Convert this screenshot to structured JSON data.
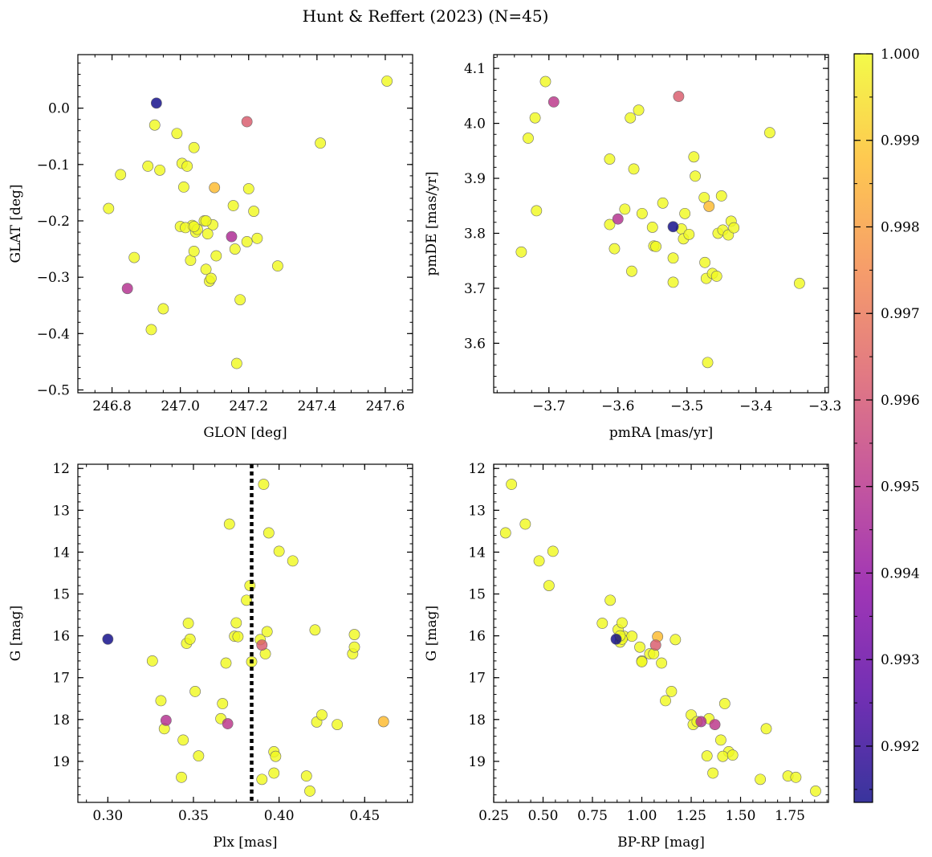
{
  "figure_title": "Hunt & Reffert (2023) (N=45)",
  "colors": {
    "cmap": [
      "#0d0887",
      "#5302a3",
      "#8b0aa5",
      "#b83289",
      "#db5c68",
      "#f48849",
      "#febc2a",
      "#f0f921"
    ],
    "edge": "#6b6b6b"
  },
  "colorbar": {
    "min": 0.99135,
    "max": 1.0,
    "ticks": [
      0.992,
      0.993,
      0.994,
      0.995,
      0.996,
      0.997,
      0.998,
      0.999,
      1.0
    ]
  },
  "chart_data": [
    {
      "type": "scatter",
      "xlabel": "GLON [deg]",
      "ylabel": "GLAT [deg]",
      "xlim": [
        246.7,
        247.68
      ],
      "ylim": [
        -0.505,
        0.095
      ],
      "xticks": [
        246.8,
        247.0,
        247.2,
        247.4,
        247.6
      ],
      "yticks": [
        -0.5,
        -0.4,
        -0.3,
        -0.2,
        -0.1,
        0.0
      ],
      "x": [
        246.79,
        246.825,
        246.865,
        246.845,
        246.905,
        246.915,
        246.925,
        246.94,
        246.95,
        246.99,
        247.005,
        247.01,
        247.02,
        247.03,
        247.04,
        247.035,
        247.045,
        247.04,
        247.0,
        247.015,
        247.07,
        247.075,
        247.085,
        247.09,
        247.095,
        247.08,
        247.105,
        247.155,
        247.16,
        247.165,
        247.175,
        247.195,
        247.2,
        247.215,
        247.225,
        247.285,
        247.41,
        247.605,
        246.93,
        247.195,
        247.15,
        247.1,
        247.075,
        247.05,
        247.04
      ],
      "y": [
        -0.178,
        -0.118,
        -0.265,
        -0.32,
        -0.103,
        -0.393,
        -0.03,
        -0.11,
        -0.356,
        -0.045,
        -0.098,
        -0.14,
        -0.103,
        -0.27,
        -0.07,
        -0.208,
        -0.22,
        -0.254,
        -0.21,
        -0.212,
        -0.2,
        -0.286,
        -0.307,
        -0.302,
        -0.207,
        -0.223,
        -0.262,
        -0.173,
        -0.25,
        -0.453,
        -0.34,
        -0.237,
        -0.143,
        -0.183,
        -0.231,
        -0.28,
        -0.062,
        0.048,
        0.009,
        -0.024,
        -0.228,
        -0.141,
        -0.2,
        -0.215,
        -0.21
      ],
      "prob": [
        1,
        1,
        1,
        0.9949,
        1,
        1,
        1,
        1,
        1,
        1,
        1,
        1,
        1,
        1,
        1,
        1,
        1,
        1,
        1,
        1,
        1,
        1,
        1,
        1,
        1,
        1,
        1,
        1,
        1,
        1,
        1,
        1,
        1,
        1,
        1,
        1,
        1,
        1,
        0.99135,
        0.9962,
        0.9947,
        0.9987,
        1,
        1,
        1
      ]
    },
    {
      "type": "scatter",
      "xlabel": "pmRA [mas/yr]",
      "ylabel": "pmDE [mas/yr]",
      "xlim": [
        -3.78,
        -3.295
      ],
      "ylim": [
        3.51,
        4.125
      ],
      "xticks": [
        -3.7,
        -3.6,
        -3.5,
        -3.4,
        -3.3
      ],
      "yticks": [
        3.6,
        3.7,
        3.8,
        3.9,
        4.0,
        4.1
      ],
      "x": [
        -3.74,
        -3.73,
        -3.72,
        -3.705,
        -3.718,
        -3.612,
        -3.605,
        -3.59,
        -3.582,
        -3.577,
        -3.57,
        -3.565,
        -3.55,
        -3.548,
        -3.545,
        -3.535,
        -3.52,
        -3.52,
        -3.508,
        -3.505,
        -3.503,
        -3.497,
        -3.49,
        -3.488,
        -3.475,
        -3.474,
        -3.472,
        -3.47,
        -3.463,
        -3.457,
        -3.455,
        -3.45,
        -3.448,
        -3.44,
        -3.436,
        -3.432,
        -3.38,
        -3.337,
        -3.612,
        -3.58,
        -3.52,
        -3.693,
        -3.512,
        -3.6,
        -3.468
      ],
      "y": [
        3.766,
        3.973,
        4.01,
        4.076,
        3.841,
        3.935,
        3.772,
        3.844,
        4.01,
        3.917,
        4.024,
        3.836,
        3.811,
        3.777,
        3.776,
        3.855,
        3.755,
        3.711,
        3.808,
        3.79,
        3.836,
        3.798,
        3.939,
        3.904,
        3.865,
        3.747,
        3.718,
        3.565,
        3.727,
        3.722,
        3.8,
        3.868,
        3.806,
        3.797,
        3.822,
        3.81,
        3.983,
        3.709,
        3.816,
        3.731,
        3.812,
        4.039,
        4.049,
        3.826,
        3.849
      ],
      "prob": [
        1,
        1,
        1,
        1,
        1,
        1,
        1,
        1,
        1,
        1,
        1,
        1,
        1,
        1,
        1,
        1,
        1,
        1,
        1,
        1,
        1,
        1,
        1,
        1,
        1,
        1,
        1,
        1,
        1,
        1,
        1,
        1,
        1,
        1,
        1,
        1,
        1,
        1,
        1,
        1,
        0.99135,
        0.9951,
        0.9962,
        0.9949,
        0.9987
      ]
    },
    {
      "type": "scatter",
      "xlabel": "Plx [mas]",
      "ylabel": "G [mag]",
      "xlim": [
        0.2825,
        0.478
      ],
      "ylim": [
        19.98,
        11.9
      ],
      "xticks": [
        0.3,
        0.35,
        0.4,
        0.45
      ],
      "yticks": [
        12,
        13,
        14,
        15,
        16,
        17,
        18,
        19
      ],
      "vline": 0.384,
      "x": [
        0.326,
        0.331,
        0.333,
        0.344,
        0.346,
        0.347,
        0.348,
        0.351,
        0.353,
        0.343,
        0.367,
        0.366,
        0.369,
        0.371,
        0.374,
        0.375,
        0.376,
        0.381,
        0.383,
        0.384,
        0.389,
        0.391,
        0.39,
        0.392,
        0.393,
        0.394,
        0.397,
        0.398,
        0.397,
        0.4,
        0.408,
        0.416,
        0.418,
        0.421,
        0.422,
        0.425,
        0.434,
        0.443,
        0.444,
        0.444,
        0.3,
        0.39,
        0.37,
        0.334,
        0.461
      ],
      "y": [
        16.6,
        17.55,
        18.22,
        18.49,
        16.18,
        15.7,
        16.08,
        17.33,
        18.87,
        19.38,
        17.62,
        17.98,
        16.65,
        13.33,
        16.01,
        15.69,
        16.02,
        15.15,
        14.8,
        16.62,
        16.09,
        12.38,
        19.43,
        16.43,
        15.9,
        13.54,
        18.77,
        18.88,
        19.28,
        13.98,
        14.21,
        19.35,
        19.71,
        15.86,
        18.06,
        17.89,
        18.12,
        16.43,
        16.27,
        15.97,
        16.08,
        16.22,
        18.1,
        18.02,
        18.05
      ],
      "prob": [
        1,
        1,
        1,
        1,
        1,
        1,
        1,
        1,
        1,
        1,
        1,
        1,
        1,
        1,
        1,
        1,
        1,
        1,
        1,
        1,
        1,
        1,
        1,
        1,
        1,
        1,
        1,
        1,
        1,
        1,
        1,
        1,
        1,
        1,
        1,
        1,
        1,
        1,
        1,
        1,
        0.99135,
        0.9962,
        0.9951,
        0.9949,
        0.9987
      ]
    },
    {
      "type": "scatter",
      "xlabel": "BP-RP [mag]",
      "ylabel": "G [mag]",
      "xlim": [
        0.25,
        1.945
      ],
      "ylim": [
        19.98,
        11.9
      ],
      "xticks": [
        0.25,
        0.5,
        0.75,
        1.0,
        1.25,
        1.5,
        1.75
      ],
      "yticks": [
        12,
        13,
        14,
        15,
        16,
        17,
        18,
        19
      ],
      "x": [
        0.34,
        0.31,
        0.41,
        0.48,
        0.53,
        0.55,
        0.84,
        0.8,
        0.88,
        0.89,
        0.9,
        0.91,
        0.95,
        0.9,
        0.89,
        0.99,
        1.0,
        1.0,
        1.04,
        1.06,
        1.1,
        1.12,
        1.15,
        1.17,
        1.25,
        1.26,
        1.28,
        1.33,
        1.34,
        1.36,
        1.4,
        1.42,
        1.44,
        1.41,
        1.46,
        1.6,
        1.63,
        1.74,
        1.78,
        1.88,
        0.87,
        1.07,
        1.37,
        1.3,
        1.08
      ],
      "y": [
        12.38,
        13.54,
        13.33,
        14.21,
        14.8,
        13.98,
        15.15,
        15.7,
        15.85,
        16.15,
        15.69,
        16.01,
        16.01,
        16.08,
        16.0,
        16.27,
        16.6,
        16.62,
        16.43,
        16.43,
        16.65,
        17.55,
        17.33,
        16.09,
        17.89,
        18.12,
        18.05,
        18.87,
        17.98,
        19.28,
        18.49,
        17.62,
        18.77,
        18.88,
        18.85,
        19.43,
        18.22,
        19.35,
        19.38,
        19.71,
        16.08,
        16.22,
        18.12,
        18.05,
        16.02
      ],
      "prob": [
        1,
        1,
        1,
        1,
        1,
        1,
        1,
        1,
        1,
        1,
        1,
        1,
        1,
        1,
        1,
        1,
        1,
        1,
        1,
        1,
        1,
        1,
        1,
        1,
        1,
        1,
        1,
        1,
        1,
        1,
        1,
        1,
        1,
        1,
        1,
        1,
        1,
        1,
        1,
        1,
        0.99135,
        0.9962,
        0.9951,
        0.9949,
        0.9987
      ]
    }
  ]
}
